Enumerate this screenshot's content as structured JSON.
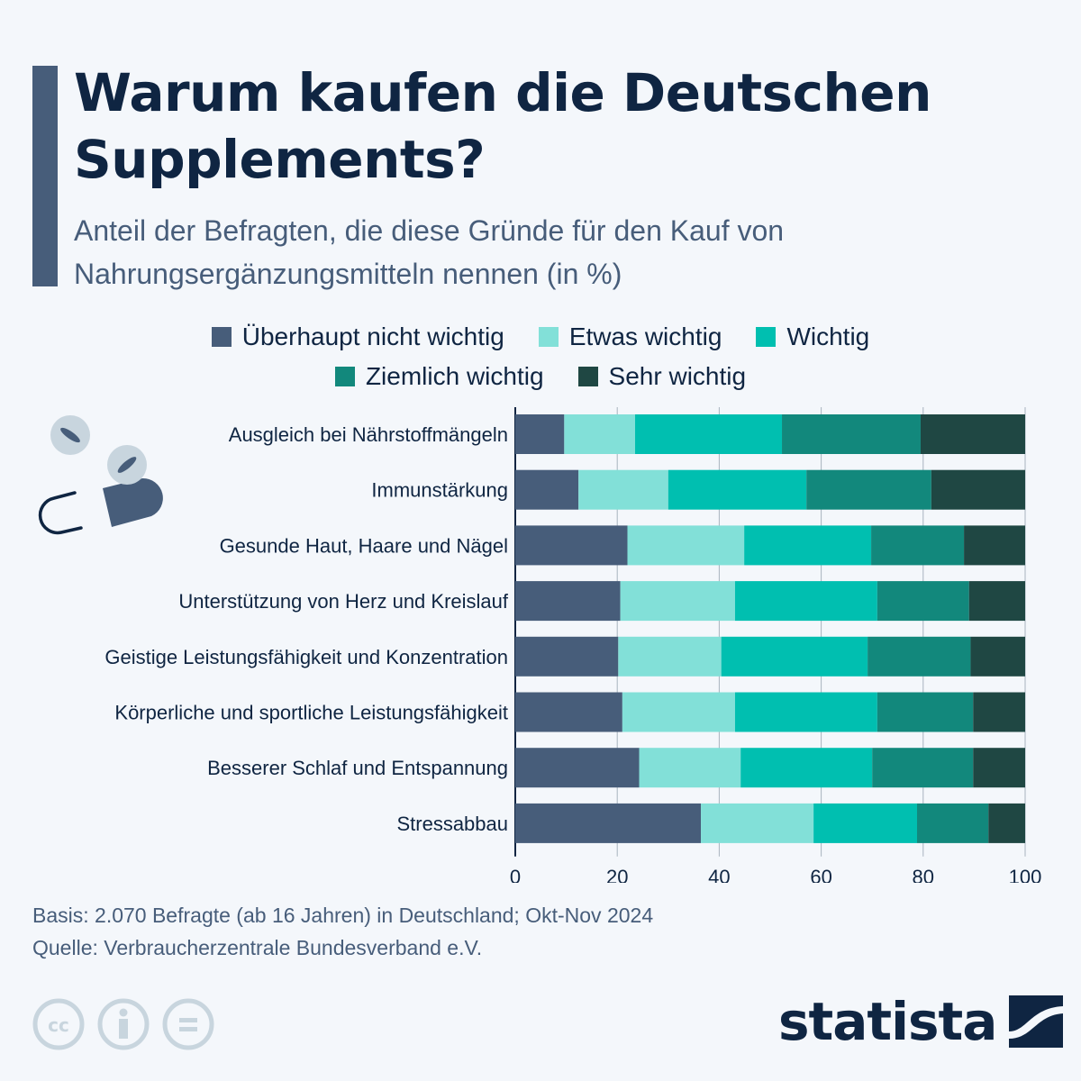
{
  "header": {
    "title": "Warum kaufen die Deutschen Supplements?",
    "subtitle": "Anteil der Befragten, die diese Gründe für den Kauf von Nahrungsergänzungsmitteln nennen (in %)"
  },
  "footer": {
    "basis": "Basis: 2.070 Befragte (ab 16 Jahren) in Deutschland; Okt-Nov 2024",
    "source": "Quelle: Verbraucherzentrale Bundesverband e.V.",
    "logo_text": "statista",
    "license_icons": [
      "cc-icon",
      "attribution-icon",
      "no-derivatives-icon"
    ]
  },
  "chart_data": {
    "type": "bar",
    "orientation": "horizontal",
    "stacked": true,
    "title": "Warum kaufen die Deutschen Supplements?",
    "xlabel": "",
    "ylabel": "",
    "xlim": [
      0,
      100
    ],
    "xticks": [
      "0",
      "20",
      "40",
      "60",
      "80",
      "100"
    ],
    "grid": true,
    "legend_position": "top-center",
    "categories": [
      "Ausgleich bei Nährstoffmängeln",
      "Immunstärkung",
      "Gesunde Haut, Haare und Nägel",
      "Unterstützung von Herz und Kreislauf",
      "Geistige Leistungsfähigkeit und Konzentration",
      "Körperliche und sportliche Leistungsfähigkeit",
      "Besserer Schlaf und Entspannung",
      "Stressabbau"
    ],
    "series": [
      {
        "name": "Überhaupt nicht wichtig",
        "color": "#475d7a",
        "values": [
          9.6,
          12.4,
          22.0,
          20.6,
          20.2,
          21.0,
          24.3,
          36.4
        ]
      },
      {
        "name": "Etwas wichtig",
        "color": "#82e0d8",
        "values": [
          13.9,
          17.6,
          22.9,
          22.5,
          20.2,
          22.1,
          19.9,
          22.1
        ]
      },
      {
        "name": "Wichtig",
        "color": "#00bfb0",
        "values": [
          28.8,
          27.1,
          24.9,
          27.9,
          28.7,
          27.9,
          25.8,
          20.3
        ]
      },
      {
        "name": "Ziemlich wichtig",
        "color": "#12887c",
        "values": [
          27.2,
          24.5,
          18.2,
          18.0,
          20.2,
          18.8,
          19.8,
          14.0
        ]
      },
      {
        "name": "Sehr wichtig",
        "color": "#1f4743",
        "values": [
          20.5,
          18.4,
          12.0,
          11.0,
          10.7,
          10.2,
          10.2,
          7.2
        ]
      }
    ]
  }
}
